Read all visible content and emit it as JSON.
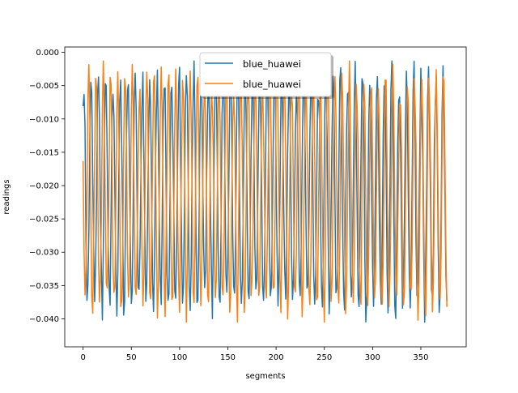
{
  "chart_data": {
    "type": "line",
    "title": "",
    "xlabel": "segments",
    "ylabel": "readings",
    "xlim": [
      -19,
      397
    ],
    "ylim": [
      -0.0442,
      0.0008
    ],
    "xticks": [
      0,
      50,
      100,
      150,
      200,
      250,
      300,
      350
    ],
    "yticks": [
      -0.04,
      -0.035,
      -0.03,
      -0.025,
      -0.02,
      -0.015,
      -0.01,
      -0.005,
      0.0
    ],
    "ytick_labels": [
      "−0.040",
      "−0.035",
      "−0.030",
      "−0.025",
      "−0.020",
      "−0.015",
      "−0.010",
      "−0.005",
      "0.000"
    ],
    "grid": false,
    "legend": {
      "placement": "upper center",
      "shadow": true
    },
    "signal": {
      "n": 378,
      "min": -0.0405,
      "max": -0.0013,
      "period_a": 7.6,
      "period_b": 7.5,
      "seed_a": 11,
      "seed_b": 29
    },
    "series": [
      {
        "name": "blue_huawei",
        "color": "#1f77b4"
      },
      {
        "name": "blue_huawei",
        "color": "#ff7f0e"
      }
    ]
  }
}
